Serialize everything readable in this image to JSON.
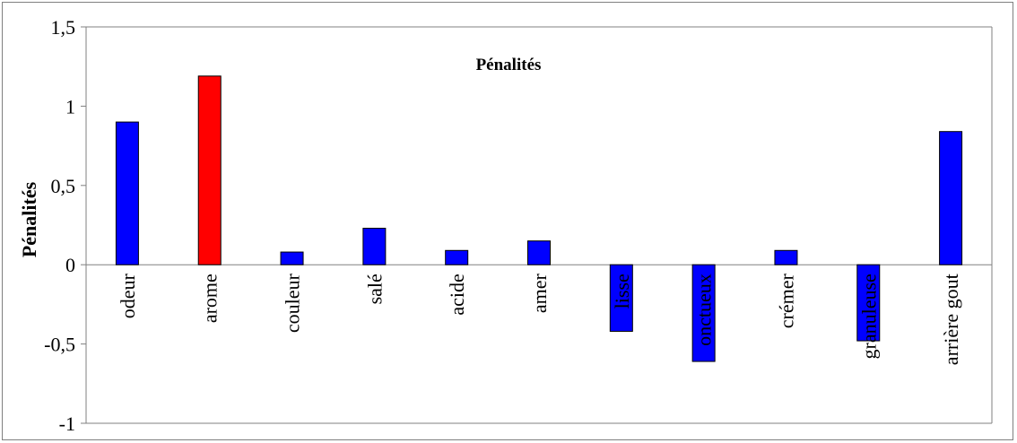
{
  "chart_data": {
    "type": "bar",
    "title": "Pénalités",
    "ylabel": "Pénalités",
    "xlabel": "",
    "ylim": [
      -1,
      1.5
    ],
    "yticks": [
      1.5,
      1,
      0.5,
      0,
      -0.5,
      -1
    ],
    "ytick_labels": [
      "1,5",
      "1",
      "0,5",
      "0",
      "-0,5",
      "-1"
    ],
    "categories": [
      "odeur",
      "arome",
      "couleur",
      "salé",
      "acide",
      "amer",
      "lisse",
      "onctueux",
      "crémer",
      "granuleuse",
      "arrière gout"
    ],
    "values": [
      0.9,
      1.19,
      0.08,
      0.23,
      0.09,
      0.15,
      -0.42,
      -0.61,
      0.09,
      -0.48,
      0.84
    ],
    "bar_colors": [
      "#0000ff",
      "#ff0000",
      "#0000ff",
      "#0000ff",
      "#0000ff",
      "#0000ff",
      "#0000ff",
      "#0000ff",
      "#0000ff",
      "#0000ff",
      "#0000ff"
    ],
    "grid": false,
    "legend": "none"
  }
}
